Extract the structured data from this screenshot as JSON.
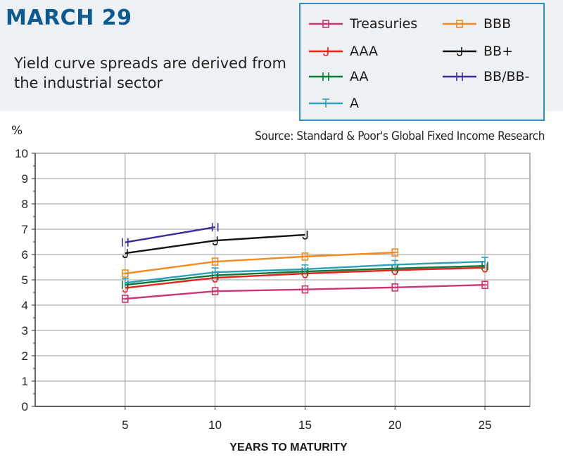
{
  "header": {
    "title": "MARCH 29",
    "subtitle": "Yield curve spreads are derived from the industrial sector"
  },
  "source": "Source: Standard & Poor's Global Fixed Income Research",
  "chart_data": {
    "type": "line",
    "title": "",
    "ylabel": "%",
    "xlabel": "YEARS TO MATURITY",
    "xlim": [
      0,
      27.5
    ],
    "ylim": [
      0,
      10
    ],
    "x_ticks": [
      5,
      10,
      15,
      20,
      25
    ],
    "y_ticks": [
      0,
      1,
      2,
      3,
      4,
      5,
      6,
      7,
      8,
      9,
      10
    ],
    "grid": true,
    "legend_position": "top-right",
    "series": [
      {
        "name": "Treasuries",
        "color": "#cc3377",
        "marker": "B",
        "x": [
          5,
          10,
          15,
          20,
          25
        ],
        "y": [
          4.25,
          4.55,
          4.62,
          4.7,
          4.8
        ]
      },
      {
        "name": "AAA",
        "color": "#e8211d",
        "marker": "J",
        "x": [
          5,
          10,
          15,
          20,
          25
        ],
        "y": [
          4.68,
          5.08,
          5.25,
          5.38,
          5.48
        ]
      },
      {
        "name": "AA",
        "color": "#0a7a3a",
        "marker": "H",
        "x": [
          5,
          10,
          15,
          20,
          25
        ],
        "y": [
          4.8,
          5.18,
          5.33,
          5.45,
          5.55
        ]
      },
      {
        "name": "A",
        "color": "#2ca0b8",
        "marker": "F",
        "x": [
          5,
          10,
          15,
          20,
          25
        ],
        "y": [
          4.88,
          5.3,
          5.42,
          5.6,
          5.72
        ]
      },
      {
        "name": "BBB",
        "color": "#f28a1e",
        "marker": "B",
        "x": [
          5,
          10,
          15,
          20
        ],
        "y": [
          5.25,
          5.72,
          5.92,
          6.08
        ]
      },
      {
        "name": "BB+",
        "color": "#111111",
        "marker": "J",
        "x": [
          5,
          10,
          15
        ],
        "y": [
          6.05,
          6.55,
          6.78
        ]
      },
      {
        "name": "BB/BB-",
        "color": "#3a2a9a",
        "marker": "H",
        "x": [
          5,
          10
        ],
        "y": [
          6.48,
          7.08
        ]
      }
    ]
  }
}
